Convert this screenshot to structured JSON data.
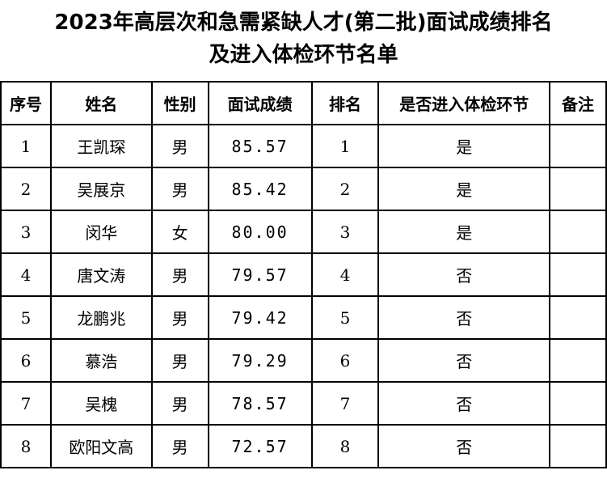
{
  "title_line1": "2023年高层次和急需紧缺人才(第二批)面试成绩排名",
  "title_line2": "及进入体检环节名单",
  "headers": [
    "序号",
    "姓名",
    "性别",
    "面试成绩",
    "排名",
    "是否进入体检环节",
    "备注"
  ],
  "rows": [
    [
      "1",
      "王凯琛",
      "男",
      "85.57",
      "1",
      "是",
      ""
    ],
    [
      "2",
      "吴展京",
      "男",
      "85.42",
      "2",
      "是",
      ""
    ],
    [
      "3",
      "闵华",
      "女",
      "80.00",
      "3",
      "是",
      ""
    ],
    [
      "4",
      "唐文涛",
      "男",
      "79.57",
      "4",
      "否",
      ""
    ],
    [
      "5",
      "龙鹏兆",
      "男",
      "79.42",
      "5",
      "否",
      ""
    ],
    [
      "6",
      "慕浩",
      "男",
      "79.29",
      "6",
      "否",
      ""
    ],
    [
      "7",
      "吴槐",
      "男",
      "78.57",
      "7",
      "否",
      ""
    ],
    [
      "8",
      "欧阳文高",
      "男",
      "72.57",
      "8",
      "否",
      ""
    ]
  ]
}
